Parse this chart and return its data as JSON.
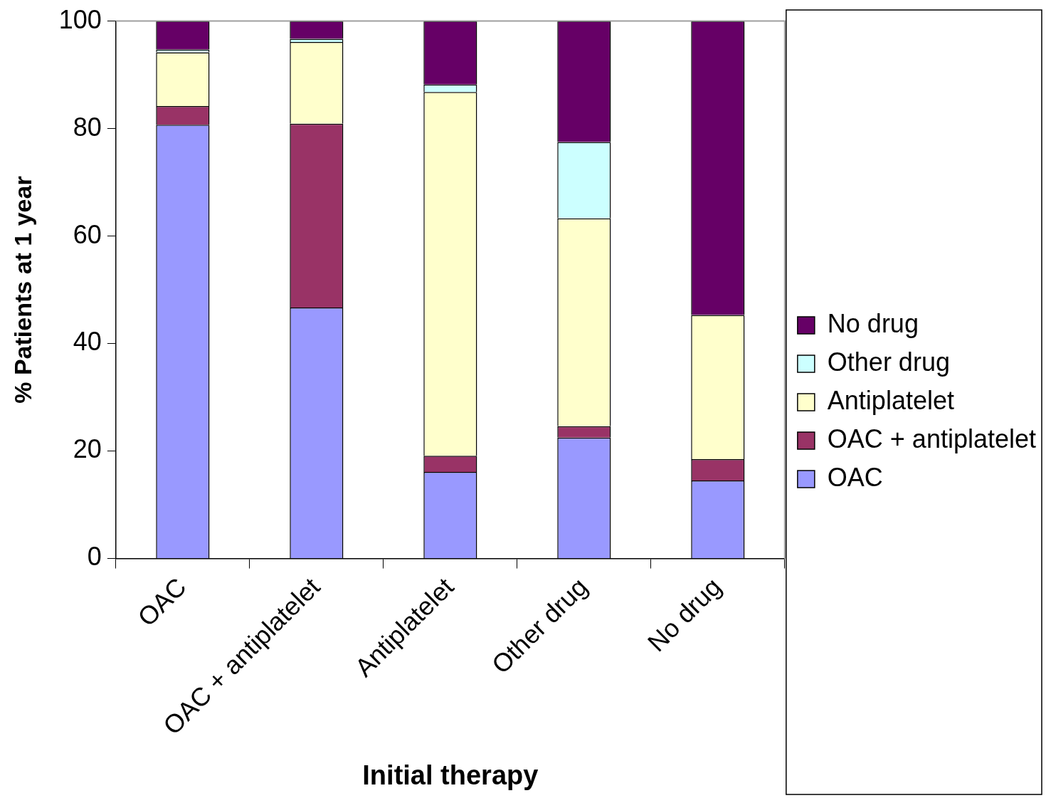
{
  "chart_data": {
    "type": "bar",
    "stacked": true,
    "xlabel": "Initial therapy",
    "ylabel": "% Patients at 1 year",
    "categories": [
      "OAC",
      "OAC + antiplatelet",
      "Antiplatelet",
      "Other drug",
      "No drug"
    ],
    "series": [
      {
        "name": "OAC",
        "color": "#9999ff",
        "values": [
          80.7,
          46.7,
          16.1,
          22.5,
          14.5
        ]
      },
      {
        "name": "OAC + antiplatelet",
        "color": "#993366",
        "values": [
          3.5,
          34.2,
          3.0,
          2.1,
          4.0
        ]
      },
      {
        "name": "Antiplatelet",
        "color": "#ffffcc",
        "values": [
          10.0,
          15.2,
          67.7,
          38.7,
          26.8
        ]
      },
      {
        "name": "Other drug",
        "color": "#ccffff",
        "values": [
          0.5,
          0.6,
          1.4,
          14.2,
          0
        ]
      },
      {
        "name": "No drug",
        "color": "#660066",
        "values": [
          5.3,
          3.3,
          11.8,
          22.5,
          54.7
        ]
      }
    ],
    "ylim": [
      0,
      100
    ],
    "yticks": [
      0,
      20,
      40,
      60,
      80,
      100
    ],
    "grid": false,
    "legend": "right"
  }
}
